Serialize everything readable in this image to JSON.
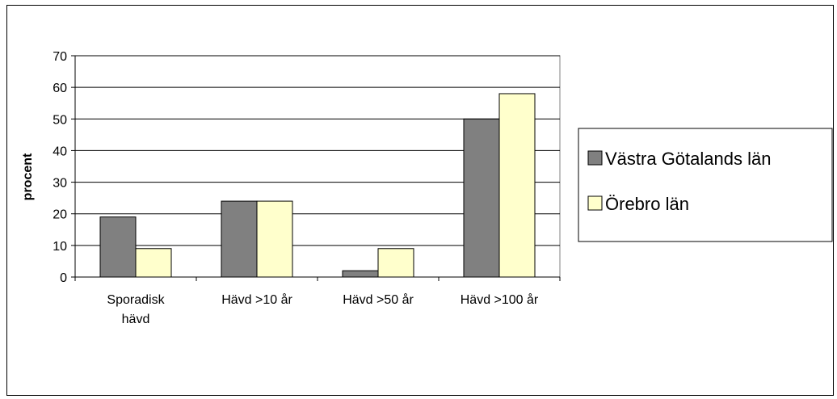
{
  "chart_data": {
    "type": "bar",
    "title": "",
    "xlabel": "",
    "ylabel": "procent",
    "categories": [
      "Sporadisk hävd",
      "Hävd >10 år",
      "Hävd >50 år",
      "Hävd >100 år"
    ],
    "category_lines": [
      [
        "Sporadisk",
        "hävd"
      ],
      [
        "Hävd >10 år"
      ],
      [
        "Hävd >50 år"
      ],
      [
        "Hävd >100 år"
      ]
    ],
    "series": [
      {
        "name": "Västra Götalands län",
        "values": [
          19,
          24,
          2,
          50
        ],
        "color": "#808080"
      },
      {
        "name": "Örebro län",
        "values": [
          9,
          24,
          9,
          58
        ],
        "color": "#ffffcc"
      }
    ],
    "ylim": [
      0,
      70
    ],
    "yticks": [
      0,
      10,
      20,
      30,
      40,
      50,
      60,
      70
    ],
    "grid": true,
    "legend_position": "right"
  }
}
